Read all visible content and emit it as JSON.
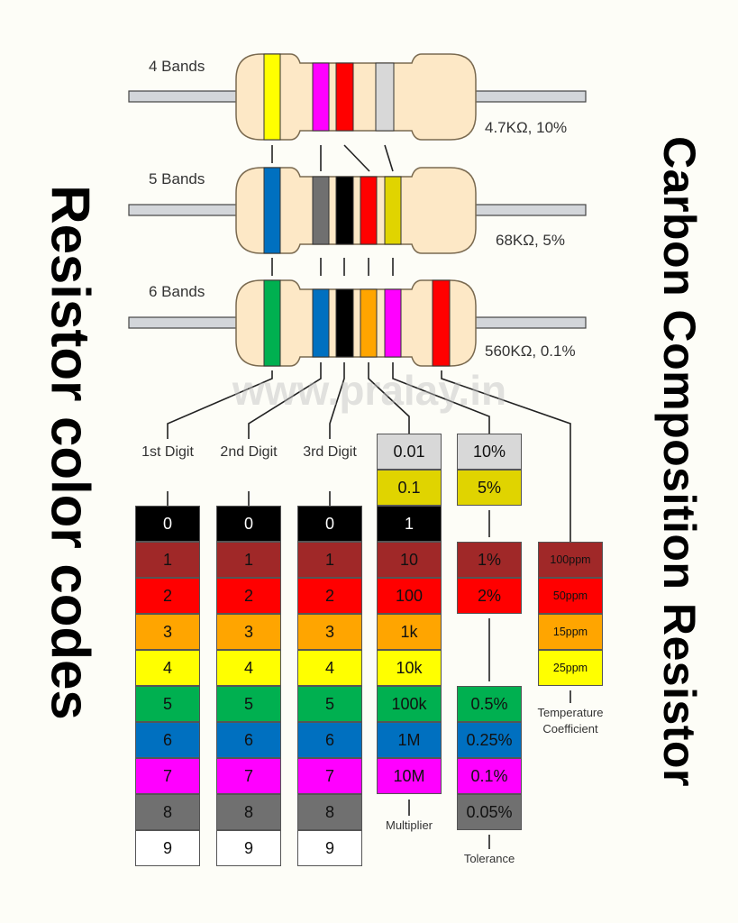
{
  "titles": {
    "left": "Resistor color codes",
    "right": "Carbon Composition Resistor",
    "watermark": "www.pralay.in"
  },
  "resistors": [
    {
      "label": "4 Bands",
      "value": "4.7KΩ, 10%",
      "bands": [
        {
          "slot": "A",
          "color": "#ffff00"
        },
        {
          "slot": "B",
          "color": "#ff00ff"
        },
        {
          "slot": "C",
          "color": "#ff0000"
        },
        {
          "slot": "E",
          "color": "#d8d8d8"
        }
      ]
    },
    {
      "label": "5 Bands",
      "value": "68KΩ, 5%",
      "bands": [
        {
          "slot": "A",
          "color": "#0070c0"
        },
        {
          "slot": "B",
          "color": "#707070"
        },
        {
          "slot": "C",
          "color": "#000000"
        },
        {
          "slot": "D",
          "color": "#ff0000"
        },
        {
          "slot": "E",
          "color": "#e0d400"
        }
      ]
    },
    {
      "label": "6 Bands",
      "value": "560KΩ, 0.1%",
      "bands": [
        {
          "slot": "A",
          "color": "#00b050"
        },
        {
          "slot": "B",
          "color": "#0070c0"
        },
        {
          "slot": "C",
          "color": "#000000"
        },
        {
          "slot": "D",
          "color": "#ffa500"
        },
        {
          "slot": "E",
          "color": "#ff00ff"
        },
        {
          "slot": "F",
          "color": "#ff0000"
        }
      ]
    }
  ],
  "colors": {
    "black": "#000000",
    "brown": "#a02828",
    "red": "#ff0000",
    "orange": "#ffa500",
    "yellow": "#ffff00",
    "green": "#00b050",
    "blue": "#0070c0",
    "violet": "#ff00ff",
    "gray": "#707070",
    "white": "#ffffff",
    "gold": "#e0d400",
    "silver": "#d8d8d8"
  },
  "columns": {
    "digit1": {
      "label": "1st Digit",
      "cells": [
        {
          "text": "0",
          "color": "black"
        },
        {
          "text": "1",
          "color": "brown"
        },
        {
          "text": "2",
          "color": "red"
        },
        {
          "text": "3",
          "color": "orange"
        },
        {
          "text": "4",
          "color": "yellow"
        },
        {
          "text": "5",
          "color": "green"
        },
        {
          "text": "6",
          "color": "blue"
        },
        {
          "text": "7",
          "color": "violet"
        },
        {
          "text": "8",
          "color": "gray"
        },
        {
          "text": "9",
          "color": "white"
        }
      ]
    },
    "digit2": {
      "label": "2nd Digit",
      "cells": [
        {
          "text": "0",
          "color": "black"
        },
        {
          "text": "1",
          "color": "brown"
        },
        {
          "text": "2",
          "color": "red"
        },
        {
          "text": "3",
          "color": "orange"
        },
        {
          "text": "4",
          "color": "yellow"
        },
        {
          "text": "5",
          "color": "green"
        },
        {
          "text": "6",
          "color": "blue"
        },
        {
          "text": "7",
          "color": "violet"
        },
        {
          "text": "8",
          "color": "gray"
        },
        {
          "text": "9",
          "color": "white"
        }
      ]
    },
    "digit3": {
      "label": "3rd Digit",
      "cells": [
        {
          "text": "0",
          "color": "black"
        },
        {
          "text": "1",
          "color": "brown"
        },
        {
          "text": "2",
          "color": "red"
        },
        {
          "text": "3",
          "color": "orange"
        },
        {
          "text": "4",
          "color": "yellow"
        },
        {
          "text": "5",
          "color": "green"
        },
        {
          "text": "6",
          "color": "blue"
        },
        {
          "text": "7",
          "color": "violet"
        },
        {
          "text": "8",
          "color": "gray"
        },
        {
          "text": "9",
          "color": "white"
        }
      ]
    },
    "multiplier": {
      "label": "Multiplier",
      "cells": [
        {
          "text": "0.01",
          "color": "silver"
        },
        {
          "text": "0.1",
          "color": "gold"
        },
        {
          "text": "1",
          "color": "black"
        },
        {
          "text": "10",
          "color": "brown"
        },
        {
          "text": "100",
          "color": "red"
        },
        {
          "text": "1k",
          "color": "orange"
        },
        {
          "text": "10k",
          "color": "yellow"
        },
        {
          "text": "100k",
          "color": "green"
        },
        {
          "text": "1M",
          "color": "blue"
        },
        {
          "text": "10M",
          "color": "violet"
        }
      ]
    },
    "tolerance": {
      "label": "Tolerance",
      "cells": [
        {
          "text": "10%",
          "color": "silver",
          "row": 0
        },
        {
          "text": "5%",
          "color": "gold",
          "row": 1
        },
        {
          "text": "1%",
          "color": "brown",
          "row": 3
        },
        {
          "text": "2%",
          "color": "red",
          "row": 4
        },
        {
          "text": "0.5%",
          "color": "green",
          "row": 7
        },
        {
          "text": "0.25%",
          "color": "blue",
          "row": 8
        },
        {
          "text": "0.1%",
          "color": "violet",
          "row": 9
        },
        {
          "text": "0.05%",
          "color": "gray",
          "row": 10
        }
      ]
    },
    "temperature": {
      "label_line1": "Temperature",
      "label_line2": "Coefficient",
      "cells": [
        {
          "text": "100ppm",
          "color": "brown"
        },
        {
          "text": "50ppm",
          "color": "red"
        },
        {
          "text": "15ppm",
          "color": "orange"
        },
        {
          "text": "25ppm",
          "color": "yellow"
        }
      ]
    }
  }
}
